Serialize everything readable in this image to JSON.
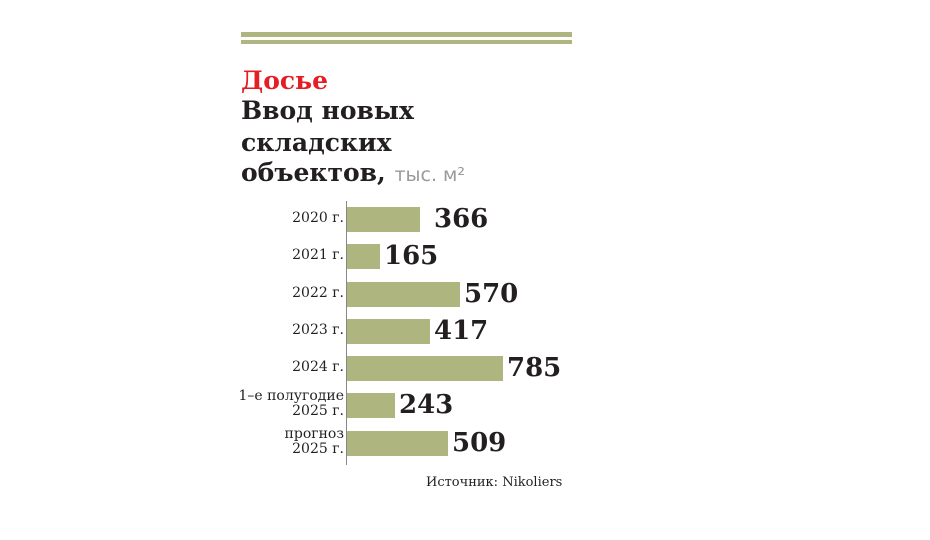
{
  "header": {
    "kicker": "Досье",
    "title_lines": [
      "Ввод новых",
      "складских",
      "объектов,"
    ],
    "unit": "тыс. м²"
  },
  "colors": {
    "bar": "#aeb57f",
    "accent": "#e31e24",
    "text": "#231f20"
  },
  "chart_data": {
    "type": "bar",
    "orientation": "horizontal",
    "title": "Ввод новых складских объектов, тыс. м²",
    "categories": [
      "2020 г.",
      "2021 г.",
      "2022 г.",
      "2023 г.",
      "2024 г.",
      "1-е полугодие 2025 г.",
      "прогноз 2025 г."
    ],
    "category_lines": [
      [
        "2020 г."
      ],
      [
        "2021 г."
      ],
      [
        "2022 г."
      ],
      [
        "2023 г."
      ],
      [
        "2024 г."
      ],
      [
        "1–е полугодие",
        "2025 г."
      ],
      [
        "прогноз",
        "2025 г."
      ]
    ],
    "values": [
      366,
      165,
      570,
      417,
      785,
      243,
      509
    ],
    "xlim": [
      0,
      785
    ]
  },
  "source": "Источник:  Nikoliers"
}
